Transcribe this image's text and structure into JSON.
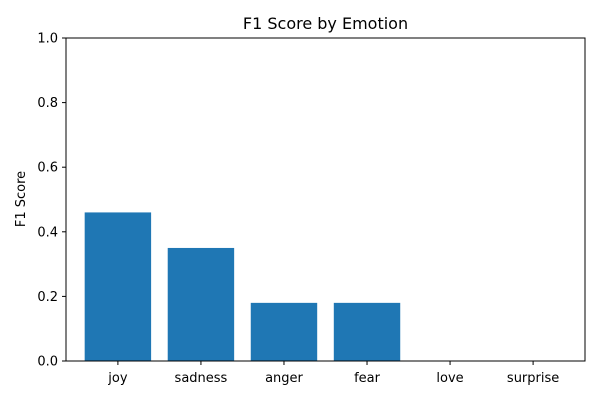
{
  "chart_data": {
    "type": "bar",
    "title": "F1 Score by Emotion",
    "xlabel": "",
    "ylabel": "F1 Score",
    "categories": [
      "joy",
      "sadness",
      "anger",
      "fear",
      "love",
      "surprise"
    ],
    "values": [
      0.46,
      0.35,
      0.18,
      0.18,
      0.0,
      0.0
    ],
    "ylim": [
      0,
      1
    ],
    "yticks": [
      "0.0",
      "0.2",
      "0.4",
      "0.6",
      "0.8",
      "1.0"
    ],
    "bar_color": "#1f77b4",
    "grid": false
  }
}
